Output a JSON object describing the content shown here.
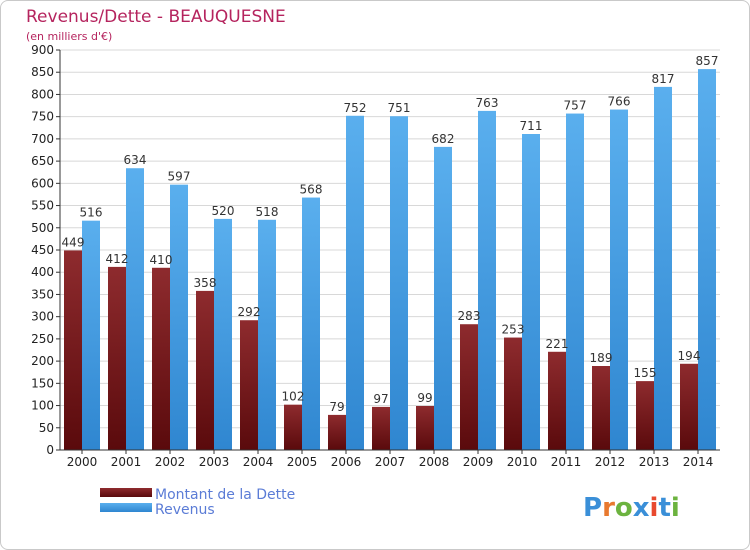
{
  "chart_data": {
    "type": "bar",
    "title": "Revenus/Dette - BEAUQUESNE",
    "subtitle": "(en milliers d'€)",
    "categories": [
      "2000",
      "2001",
      "2002",
      "2003",
      "2004",
      "2005",
      "2006",
      "2007",
      "2008",
      "2009",
      "2010",
      "2011",
      "2012",
      "2013",
      "2014"
    ],
    "series": [
      {
        "name": "Montant de la Dette",
        "color": "#7a1f22",
        "values": [
          449,
          412,
          410,
          358,
          292,
          102,
          79,
          97,
          99,
          283,
          253,
          221,
          189,
          155,
          194
        ]
      },
      {
        "name": "Revenus",
        "color": "#3d99e3",
        "values": [
          516,
          634,
          597,
          520,
          518,
          568,
          752,
          751,
          682,
          763,
          711,
          757,
          766,
          817,
          857
        ]
      }
    ],
    "ylim": [
      0,
      900
    ],
    "yticks": [
      0,
      50,
      100,
      150,
      200,
      250,
      300,
      350,
      400,
      450,
      500,
      550,
      600,
      650,
      700,
      750,
      800,
      850,
      900
    ],
    "grid": true,
    "legend_position": "bottom-left"
  },
  "logo": {
    "text": "Proxiti",
    "colors": [
      "#3a8fd8",
      "#e8792f",
      "#6cb33f",
      "#3a8fd8",
      "#e8492f",
      "#3a8fd8",
      "#6cb33f"
    ]
  }
}
